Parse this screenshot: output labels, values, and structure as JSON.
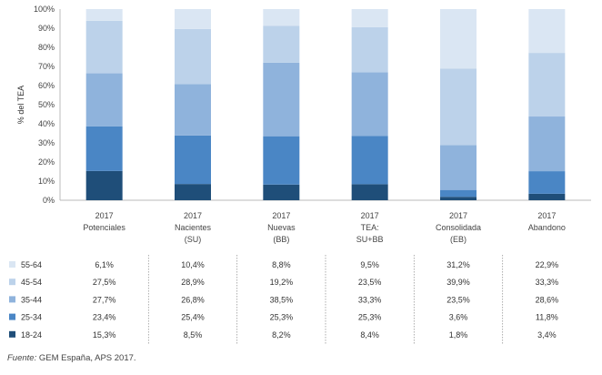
{
  "chart_data": {
    "type": "bar",
    "stacked": true,
    "normalized": true,
    "ylabel": "% del TEA",
    "ylim": [
      0,
      100
    ],
    "yticks": [
      "0%",
      "10%",
      "20%",
      "30%",
      "40%",
      "50%",
      "60%",
      "70%",
      "80%",
      "90%",
      "100%"
    ],
    "categories": [
      {
        "year": "2017",
        "line1": "Potenciales",
        "line2": ""
      },
      {
        "year": "2017",
        "line1": "Nacientes",
        "line2": "(SU)"
      },
      {
        "year": "2017",
        "line1": "Nuevas",
        "line2": "(BB)"
      },
      {
        "year": "2017",
        "line1": "TEA:",
        "line2": "SU+BB"
      },
      {
        "year": "2017",
        "line1": "Consolidada",
        "line2": "(EB)"
      },
      {
        "year": "2017",
        "line1": "Abandono",
        "line2": ""
      }
    ],
    "series": [
      {
        "name": "18-24",
        "color": "#1f4e79",
        "values": [
          15.3,
          8.5,
          8.2,
          8.4,
          1.8,
          3.4
        ],
        "labels": [
          "15,3%",
          "8,5%",
          "8,2%",
          "8,4%",
          "1,8%",
          "3,4%"
        ]
      },
      {
        "name": "25-34",
        "color": "#4a86c5",
        "values": [
          23.4,
          25.4,
          25.3,
          25.3,
          3.6,
          11.8
        ],
        "labels": [
          "23,4%",
          "25,4%",
          "25,3%",
          "25,3%",
          "3,6%",
          "11,8%"
        ]
      },
      {
        "name": "35-44",
        "color": "#8fb3dc",
        "values": [
          27.7,
          26.8,
          38.5,
          33.3,
          23.5,
          28.6
        ],
        "labels": [
          "27,7%",
          "26,8%",
          "38,5%",
          "33,3%",
          "23,5%",
          "28,6%"
        ]
      },
      {
        "name": "45-54",
        "color": "#bcd2ea",
        "values": [
          27.5,
          28.9,
          19.2,
          23.5,
          39.9,
          33.3
        ],
        "labels": [
          "27,5%",
          "28,9%",
          "19,2%",
          "23,5%",
          "39,9%",
          "33,3%"
        ]
      },
      {
        "name": "55-64",
        "color": "#dae6f3",
        "values": [
          6.1,
          10.4,
          8.8,
          9.5,
          31.2,
          22.9
        ],
        "labels": [
          "6,1%",
          "10,4%",
          "8,8%",
          "9,5%",
          "31,2%",
          "22,9%"
        ]
      }
    ],
    "table_row_order": [
      "55-64",
      "45-54",
      "35-44",
      "25-34",
      "18-24"
    ],
    "source_label": "Fuente:",
    "source_text": " GEM España, APS 2017."
  }
}
